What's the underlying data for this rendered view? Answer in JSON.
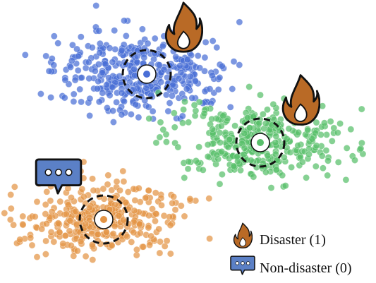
{
  "colors": {
    "cluster_blue": "#4a6fd6",
    "cluster_green": "#58bf6a",
    "cluster_orange": "#e39445",
    "flame_fill": "#b96a26",
    "flame_inner": "#ffffff",
    "chat_fill": "#5b80c6",
    "outline": "#111111"
  },
  "clusters": [
    {
      "id": "blue",
      "color_key": "cluster_blue",
      "label_icon": "flame-icon",
      "class": "disaster"
    },
    {
      "id": "green",
      "color_key": "cluster_green",
      "label_icon": "flame-icon",
      "class": "disaster"
    },
    {
      "id": "orange",
      "color_key": "cluster_orange",
      "label_icon": "chat-bubble-icon",
      "class": "non-disaster"
    }
  ],
  "legend": {
    "items": [
      {
        "icon": "flame-icon",
        "label": "Disaster (1)"
      },
      {
        "icon": "chat-bubble-icon",
        "label": "Non-disaster (0)"
      }
    ]
  }
}
